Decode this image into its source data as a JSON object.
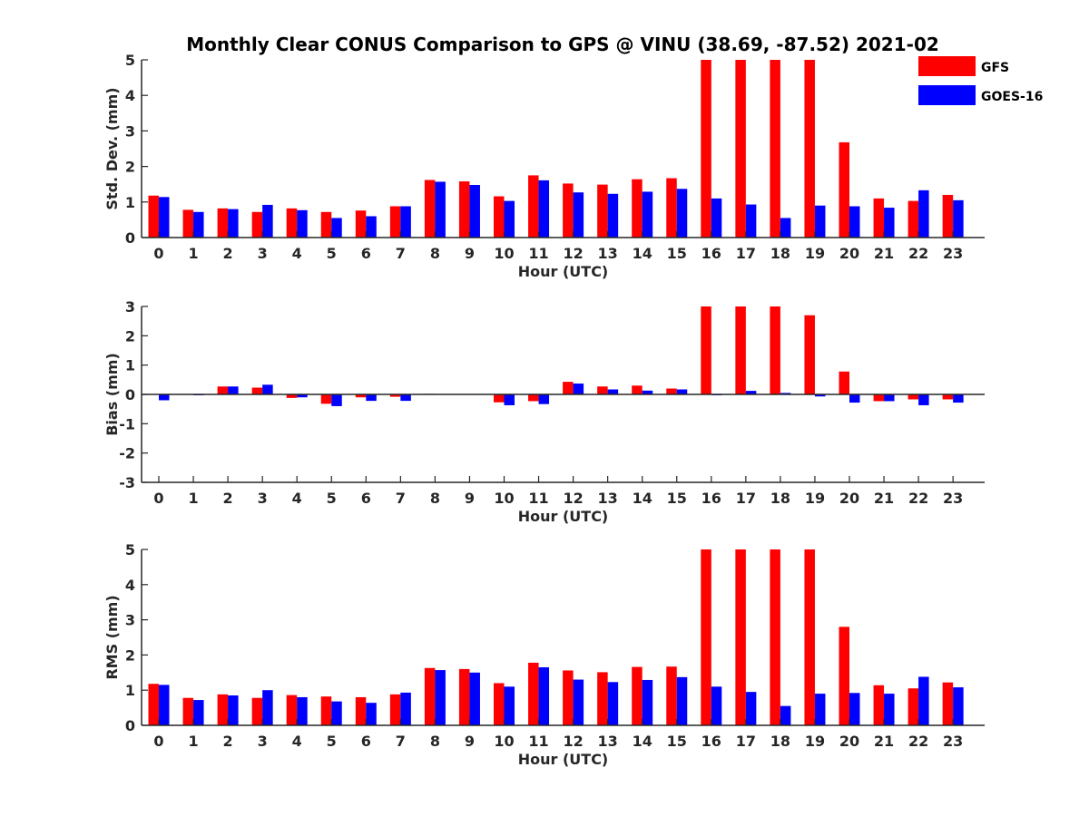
{
  "chart_data": {
    "type": "bar",
    "title": "Monthly Clear CONUS Comparison to GPS @ VINU (38.69, -87.52) 2021-02",
    "legend": {
      "placement": "top-right",
      "entries": [
        {
          "name": "GFS",
          "color": "#ff0000"
        },
        {
          "name": "GOES-16",
          "color": "#0000ff"
        }
      ]
    },
    "categories": [
      "0",
      "1",
      "2",
      "3",
      "4",
      "5",
      "6",
      "7",
      "8",
      "9",
      "10",
      "11",
      "12",
      "13",
      "14",
      "15",
      "16",
      "17",
      "18",
      "19",
      "20",
      "21",
      "22",
      "23"
    ],
    "panels": [
      {
        "ylabel": "Std. Dev. (mm)",
        "xlabel": "Hour (UTC)",
        "ylim": [
          0,
          5
        ],
        "yticks": [
          "0",
          "1",
          "2",
          "3",
          "4",
          "5"
        ],
        "series": [
          {
            "name": "GFS",
            "values": [
              1.18,
              0.78,
              0.82,
              0.72,
              0.82,
              0.72,
              0.76,
              0.88,
              1.62,
              1.58,
              1.16,
              1.75,
              1.52,
              1.49,
              1.64,
              1.67,
              5,
              5,
              5,
              5,
              2.68,
              1.1,
              1.03,
              1.2
            ]
          },
          {
            "name": "GOES-16",
            "values": [
              1.14,
              0.72,
              0.8,
              0.92,
              0.77,
              0.55,
              0.6,
              0.88,
              1.57,
              1.48,
              1.03,
              1.61,
              1.27,
              1.23,
              1.29,
              1.37,
              1.1,
              0.93,
              0.55,
              0.9,
              0.88,
              0.84,
              1.33,
              1.05
            ]
          }
        ]
      },
      {
        "ylabel": "Bias (mm)",
        "xlabel": "Hour (UTC)",
        "ylim": [
          -3,
          3
        ],
        "yticks": [
          "-3",
          "-2",
          "-1",
          "0",
          "1",
          "2",
          "3"
        ],
        "series": [
          {
            "name": "GFS",
            "values": [
              0,
              0,
              0.27,
              0.23,
              -0.12,
              -0.32,
              -0.1,
              -0.08,
              0.02,
              0,
              -0.27,
              -0.23,
              0.43,
              0.27,
              0.3,
              0.2,
              3,
              3,
              3,
              2.7,
              0.78,
              -0.23,
              -0.17,
              -0.17
            ]
          },
          {
            "name": "GOES-16",
            "values": [
              -0.2,
              -0.03,
              0.27,
              0.33,
              -0.1,
              -0.4,
              -0.22,
              -0.22,
              0,
              0,
              -0.37,
              -0.33,
              0.37,
              0.17,
              0.13,
              0.17,
              -0.03,
              0.12,
              0.05,
              -0.07,
              -0.28,
              -0.23,
              -0.37,
              -0.28
            ]
          }
        ]
      },
      {
        "ylabel": "RMS (mm)",
        "xlabel": "Hour (UTC)",
        "ylim": [
          0,
          5
        ],
        "yticks": [
          "0",
          "1",
          "2",
          "3",
          "4",
          "5"
        ],
        "series": [
          {
            "name": "GFS",
            "values": [
              1.18,
              0.78,
              0.88,
              0.78,
              0.86,
              0.82,
              0.8,
              0.88,
              1.63,
              1.6,
              1.2,
              1.78,
              1.56,
              1.51,
              1.66,
              1.67,
              5,
              5,
              5,
              5,
              2.8,
              1.14,
              1.05,
              1.22
            ]
          },
          {
            "name": "GOES-16",
            "values": [
              1.15,
              0.72,
              0.85,
              1.0,
              0.8,
              0.68,
              0.64,
              0.93,
              1.57,
              1.5,
              1.1,
              1.65,
              1.3,
              1.23,
              1.29,
              1.37,
              1.1,
              0.95,
              0.55,
              0.9,
              0.92,
              0.9,
              1.38,
              1.08
            ]
          }
        ]
      }
    ]
  }
}
